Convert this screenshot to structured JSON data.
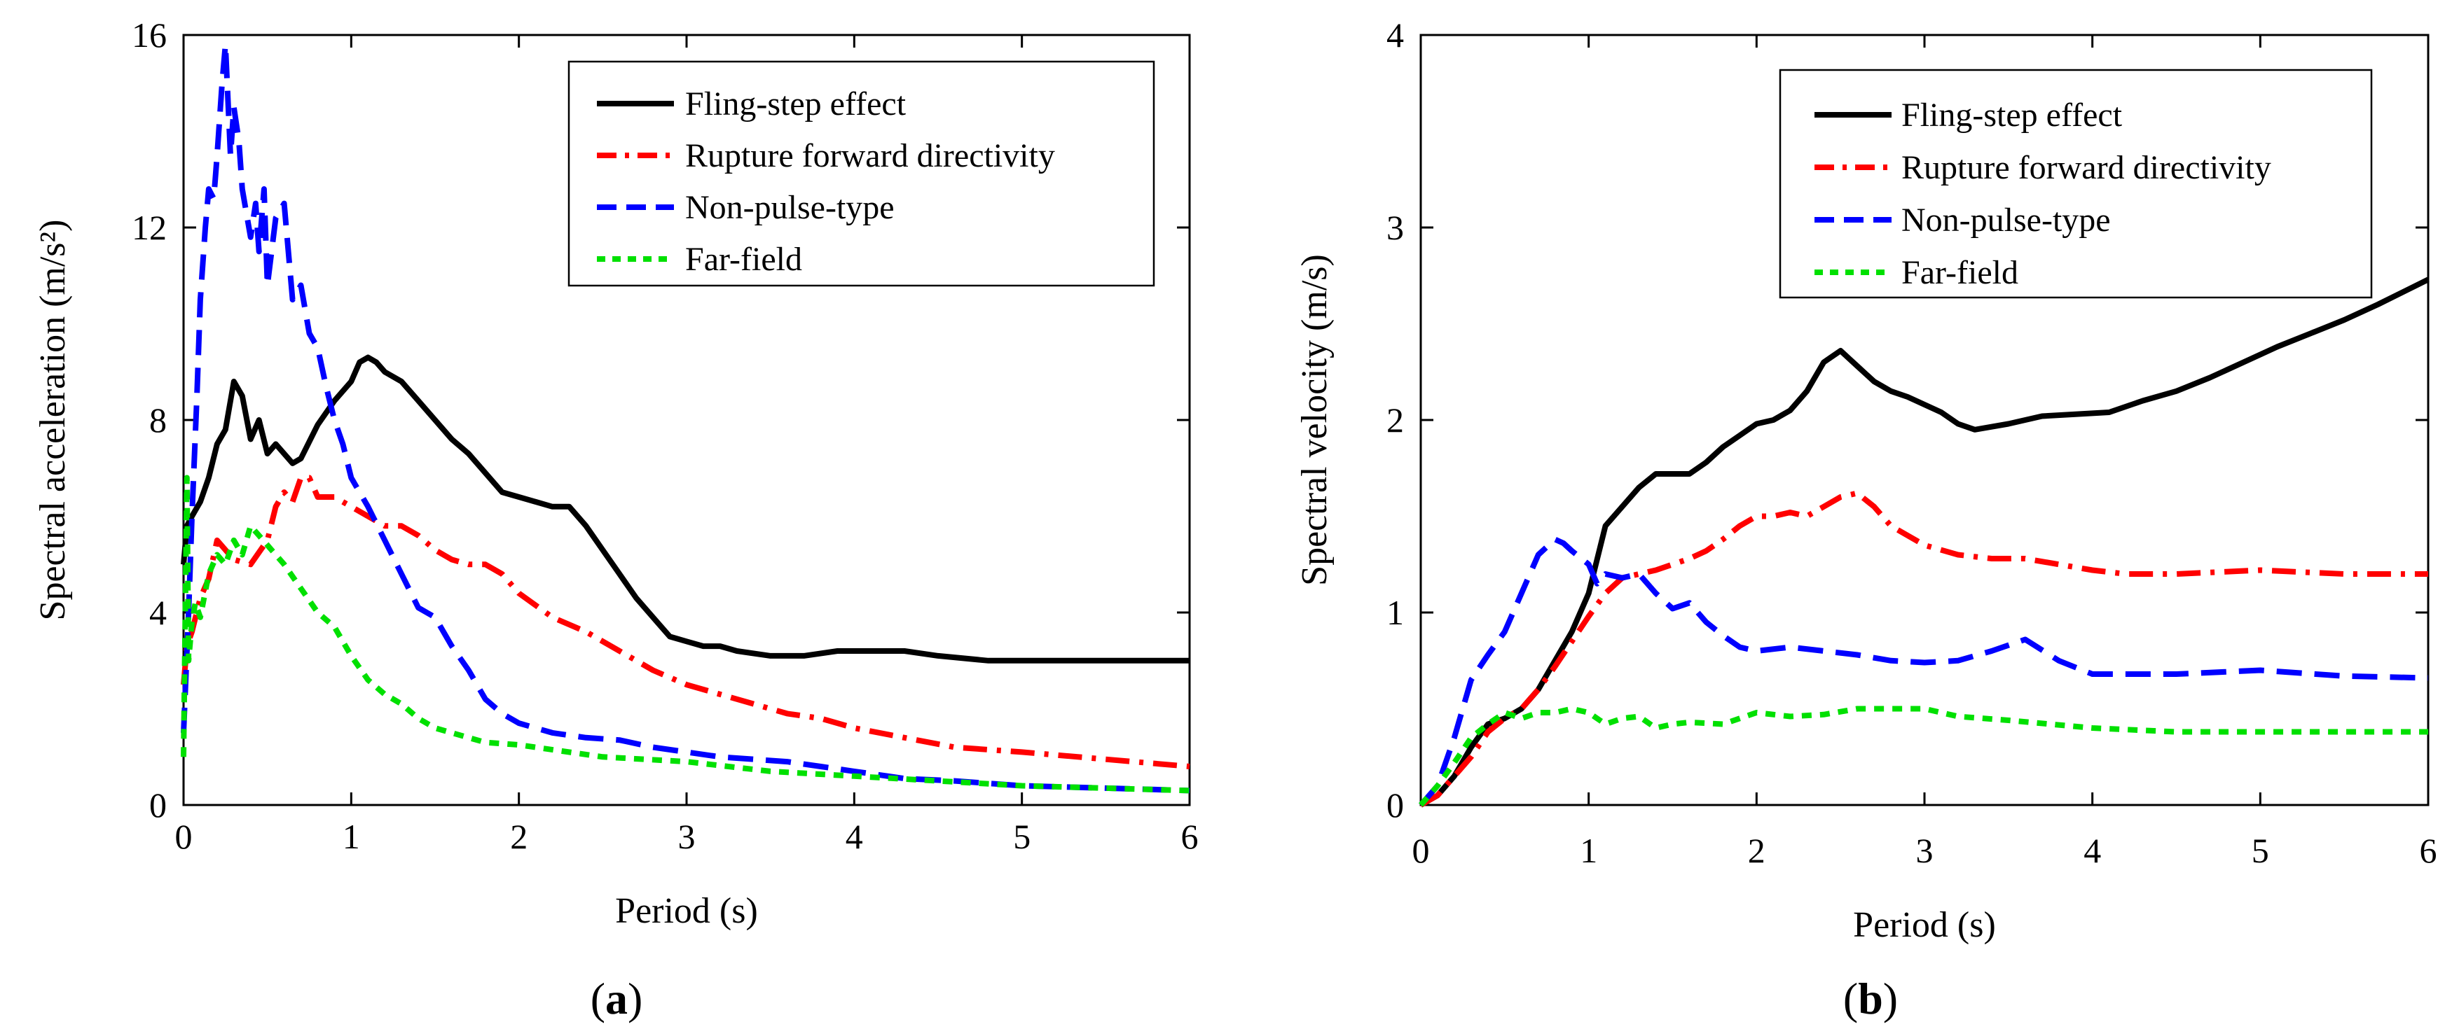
{
  "chart_data": [
    {
      "panel_label": "a",
      "caption_open": "(",
      "caption_close": ")",
      "type": "line",
      "xlabel": "Period (s)",
      "ylabel": "Spectral acceleration (m/s²)",
      "xlim": [
        0,
        6
      ],
      "ylim": [
        0,
        16
      ],
      "xticks": [
        "0",
        "1",
        "2",
        "3",
        "4",
        "5",
        "6"
      ],
      "yticks": [
        "0",
        "4",
        "8",
        "12",
        "16"
      ],
      "legend_position": "top-right",
      "series": [
        {
          "name": "Fling-step effect",
          "color": "#000000",
          "style": "solid",
          "x": [
            0,
            0.02,
            0.05,
            0.1,
            0.15,
            0.2,
            0.25,
            0.3,
            0.35,
            0.4,
            0.45,
            0.5,
            0.55,
            0.6,
            0.65,
            0.7,
            0.8,
            0.9,
            1.0,
            1.05,
            1.1,
            1.15,
            1.2,
            1.3,
            1.4,
            1.5,
            1.6,
            1.7,
            1.8,
            1.9,
            2.0,
            2.1,
            2.2,
            2.3,
            2.4,
            2.5,
            2.6,
            2.7,
            2.8,
            2.9,
            3.0,
            3.1,
            3.2,
            3.3,
            3.5,
            3.7,
            3.9,
            4.1,
            4.3,
            4.5,
            4.8,
            5.1,
            5.4,
            5.7,
            6.0
          ],
          "y": [
            5.0,
            5.8,
            6.0,
            6.3,
            6.8,
            7.5,
            7.8,
            8.8,
            8.5,
            7.6,
            8.0,
            7.3,
            7.5,
            7.3,
            7.1,
            7.2,
            7.9,
            8.4,
            8.8,
            9.2,
            9.3,
            9.2,
            9.0,
            8.8,
            8.4,
            8.0,
            7.6,
            7.3,
            6.9,
            6.5,
            6.4,
            6.3,
            6.2,
            6.2,
            5.8,
            5.3,
            4.8,
            4.3,
            3.9,
            3.5,
            3.4,
            3.3,
            3.3,
            3.2,
            3.1,
            3.1,
            3.2,
            3.2,
            3.2,
            3.1,
            3.0,
            3.0,
            3.0,
            3.0,
            3.0
          ]
        },
        {
          "name": "Rupture forward directivity",
          "color": "#ff0000",
          "style": "dashdot",
          "x": [
            0,
            0.02,
            0.05,
            0.1,
            0.15,
            0.2,
            0.3,
            0.4,
            0.5,
            0.55,
            0.6,
            0.65,
            0.7,
            0.75,
            0.8,
            0.9,
            1.0,
            1.1,
            1.2,
            1.3,
            1.4,
            1.5,
            1.6,
            1.7,
            1.8,
            1.9,
            2.0,
            2.2,
            2.4,
            2.6,
            2.8,
            3.0,
            3.2,
            3.4,
            3.6,
            3.8,
            4.0,
            4.3,
            4.6,
            5.0,
            5.5,
            6.0
          ],
          "y": [
            2.5,
            3.3,
            3.6,
            4.3,
            4.7,
            5.5,
            5.1,
            5.0,
            5.5,
            6.2,
            6.5,
            6.3,
            6.8,
            6.8,
            6.4,
            6.4,
            6.2,
            6.0,
            5.8,
            5.8,
            5.6,
            5.3,
            5.1,
            5.0,
            5.0,
            4.8,
            4.4,
            3.9,
            3.6,
            3.2,
            2.8,
            2.5,
            2.3,
            2.1,
            1.9,
            1.8,
            1.6,
            1.4,
            1.2,
            1.1,
            0.95,
            0.8
          ]
        },
        {
          "name": "Non-pulse-type",
          "color": "#0000ff",
          "style": "dashed",
          "x": [
            0,
            0.03,
            0.05,
            0.08,
            0.1,
            0.13,
            0.15,
            0.18,
            0.2,
            0.23,
            0.25,
            0.28,
            0.3,
            0.33,
            0.35,
            0.38,
            0.4,
            0.43,
            0.45,
            0.48,
            0.5,
            0.55,
            0.6,
            0.65,
            0.7,
            0.75,
            0.8,
            0.85,
            0.9,
            0.95,
            1.0,
            1.1,
            1.2,
            1.3,
            1.4,
            1.5,
            1.6,
            1.7,
            1.8,
            1.9,
            2.0,
            2.2,
            2.4,
            2.6,
            2.8,
            3.0,
            3.2,
            3.4,
            3.6,
            3.8,
            4.0,
            4.3,
            4.6,
            5.0,
            5.5,
            6.0
          ],
          "y": [
            1.5,
            4.0,
            6.0,
            8.5,
            10.5,
            12.0,
            12.8,
            12.6,
            13.5,
            15.0,
            15.8,
            13.5,
            14.5,
            13.8,
            12.8,
            12.2,
            11.8,
            12.5,
            11.5,
            12.8,
            10.8,
            12.2,
            12.5,
            10.5,
            10.8,
            9.8,
            9.5,
            8.7,
            8.0,
            7.5,
            6.8,
            6.2,
            5.5,
            4.8,
            4.1,
            3.9,
            3.3,
            2.8,
            2.2,
            1.9,
            1.7,
            1.5,
            1.4,
            1.35,
            1.2,
            1.1,
            1.0,
            0.95,
            0.9,
            0.8,
            0.7,
            0.55,
            0.5,
            0.4,
            0.35,
            0.3
          ]
        },
        {
          "name": "Far-field",
          "color": "#00e000",
          "style": "dotted",
          "x": [
            0,
            0.02,
            0.03,
            0.05,
            0.07,
            0.1,
            0.15,
            0.2,
            0.25,
            0.3,
            0.35,
            0.4,
            0.45,
            0.5,
            0.55,
            0.6,
            0.7,
            0.8,
            0.9,
            1.0,
            1.1,
            1.2,
            1.3,
            1.4,
            1.5,
            1.6,
            1.8,
            2.0,
            2.5,
            3.0,
            3.5,
            4.0,
            4.5,
            5.0,
            5.5,
            6.0
          ],
          "y": [
            1.0,
            6.8,
            3.0,
            3.8,
            4.2,
            3.9,
            4.8,
            5.2,
            5.0,
            5.5,
            5.2,
            5.8,
            5.6,
            5.4,
            5.2,
            5.0,
            4.5,
            4.0,
            3.7,
            3.1,
            2.6,
            2.3,
            2.1,
            1.8,
            1.6,
            1.5,
            1.3,
            1.25,
            1.0,
            0.9,
            0.7,
            0.6,
            0.5,
            0.4,
            0.35,
            0.3
          ]
        }
      ]
    },
    {
      "panel_label": "b",
      "caption_open": "(",
      "caption_close": ")",
      "type": "line",
      "xlabel": "Period (s)",
      "ylabel": "Spectral velocity (m/s)",
      "xlim": [
        0,
        6
      ],
      "ylim": [
        0,
        4
      ],
      "xticks": [
        "0",
        "1",
        "2",
        "3",
        "4",
        "5",
        "6"
      ],
      "yticks": [
        "0",
        "1",
        "2",
        "3",
        "4"
      ],
      "legend_position": "top-right",
      "series": [
        {
          "name": "Fling-step effect",
          "color": "#000000",
          "style": "solid",
          "x": [
            0,
            0.1,
            0.2,
            0.3,
            0.4,
            0.5,
            0.6,
            0.7,
            0.8,
            0.9,
            1.0,
            1.1,
            1.2,
            1.3,
            1.4,
            1.5,
            1.6,
            1.7,
            1.8,
            1.9,
            2.0,
            2.1,
            2.2,
            2.3,
            2.4,
            2.5,
            2.6,
            2.7,
            2.8,
            2.9,
            3.0,
            3.1,
            3.2,
            3.3,
            3.5,
            3.7,
            3.9,
            4.1,
            4.3,
            4.5,
            4.7,
            4.9,
            5.1,
            5.3,
            5.5,
            5.7,
            6.0
          ],
          "y": [
            0.0,
            0.05,
            0.15,
            0.3,
            0.42,
            0.45,
            0.5,
            0.6,
            0.75,
            0.9,
            1.1,
            1.45,
            1.55,
            1.65,
            1.72,
            1.72,
            1.72,
            1.78,
            1.86,
            1.92,
            1.98,
            2.0,
            2.05,
            2.15,
            2.3,
            2.36,
            2.28,
            2.2,
            2.15,
            2.12,
            2.08,
            2.04,
            1.98,
            1.95,
            1.98,
            2.02,
            2.03,
            2.04,
            2.1,
            2.15,
            2.22,
            2.3,
            2.38,
            2.45,
            2.52,
            2.6,
            2.73
          ]
        },
        {
          "name": "Rupture forward directivity",
          "color": "#ff0000",
          "style": "dashdot",
          "x": [
            0,
            0.1,
            0.2,
            0.3,
            0.4,
            0.5,
            0.6,
            0.7,
            0.8,
            0.9,
            1.0,
            1.1,
            1.2,
            1.3,
            1.4,
            1.5,
            1.6,
            1.7,
            1.8,
            1.9,
            2.0,
            2.1,
            2.2,
            2.3,
            2.4,
            2.5,
            2.6,
            2.7,
            2.8,
            3.0,
            3.2,
            3.4,
            3.6,
            3.8,
            4.0,
            4.2,
            4.5,
            5.0,
            5.5,
            6.0
          ],
          "y": [
            0.0,
            0.05,
            0.15,
            0.25,
            0.38,
            0.45,
            0.5,
            0.6,
            0.72,
            0.85,
            0.98,
            1.1,
            1.18,
            1.2,
            1.22,
            1.25,
            1.28,
            1.32,
            1.38,
            1.45,
            1.5,
            1.5,
            1.52,
            1.5,
            1.55,
            1.6,
            1.62,
            1.55,
            1.45,
            1.35,
            1.3,
            1.28,
            1.28,
            1.25,
            1.22,
            1.2,
            1.2,
            1.22,
            1.2,
            1.2
          ]
        },
        {
          "name": "Non-pulse-type",
          "color": "#0000ff",
          "style": "dashed",
          "x": [
            0,
            0.1,
            0.2,
            0.3,
            0.4,
            0.5,
            0.6,
            0.7,
            0.8,
            0.85,
            0.9,
            1.0,
            1.05,
            1.1,
            1.2,
            1.3,
            1.4,
            1.5,
            1.6,
            1.7,
            1.8,
            1.9,
            2.0,
            2.2,
            2.4,
            2.6,
            2.8,
            3.0,
            3.2,
            3.4,
            3.6,
            3.8,
            4.0,
            4.2,
            4.5,
            5.0,
            5.5,
            6.0
          ],
          "y": [
            0.0,
            0.1,
            0.35,
            0.65,
            0.78,
            0.9,
            1.1,
            1.3,
            1.38,
            1.36,
            1.32,
            1.25,
            1.15,
            1.2,
            1.18,
            1.2,
            1.1,
            1.02,
            1.05,
            0.95,
            0.88,
            0.82,
            0.8,
            0.82,
            0.8,
            0.78,
            0.75,
            0.74,
            0.75,
            0.8,
            0.86,
            0.75,
            0.68,
            0.68,
            0.68,
            0.7,
            0.67,
            0.66
          ]
        },
        {
          "name": "Far-field",
          "color": "#00e000",
          "style": "dotted",
          "x": [
            0,
            0.1,
            0.2,
            0.3,
            0.4,
            0.5,
            0.6,
            0.7,
            0.8,
            0.9,
            1.0,
            1.1,
            1.2,
            1.3,
            1.4,
            1.5,
            1.6,
            1.8,
            2.0,
            2.2,
            2.4,
            2.6,
            2.8,
            3.0,
            3.2,
            3.5,
            4.0,
            4.5,
            5.0,
            5.5,
            6.0
          ],
          "y": [
            0.0,
            0.1,
            0.22,
            0.35,
            0.42,
            0.48,
            0.45,
            0.48,
            0.48,
            0.5,
            0.48,
            0.42,
            0.45,
            0.46,
            0.4,
            0.42,
            0.43,
            0.42,
            0.48,
            0.46,
            0.47,
            0.5,
            0.5,
            0.5,
            0.46,
            0.44,
            0.4,
            0.38,
            0.38,
            0.38,
            0.38
          ]
        }
      ]
    }
  ]
}
